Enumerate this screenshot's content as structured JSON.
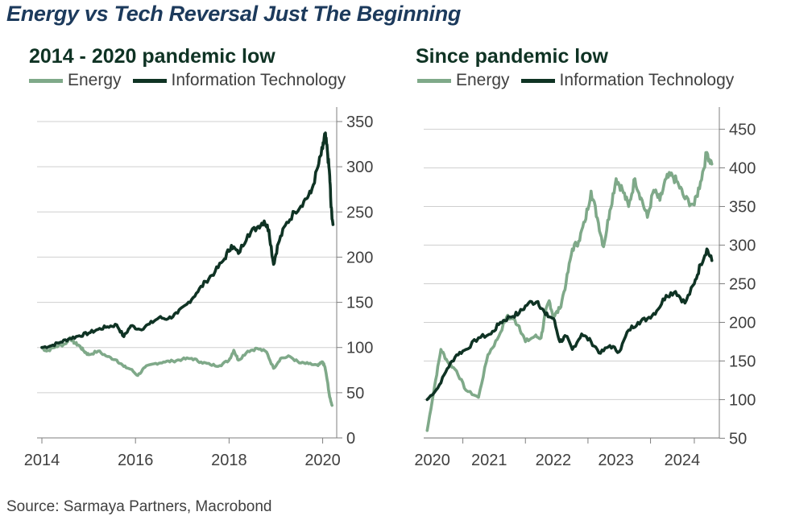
{
  "title": "Energy vs Tech Reversal Just The Beginning",
  "source": "Source: Sarmaya Partners, Macrobond",
  "colors": {
    "energy": "#7fa989",
    "tech": "#0f3324",
    "grid": "#cfcfcf",
    "axis": "#7f7f7f"
  },
  "chart_data": [
    {
      "type": "line",
      "title": "2014 - 2020 pandemic low",
      "x_ticks": [
        "2014",
        "2016",
        "2018",
        "2020"
      ],
      "x_tick_values": [
        2014,
        2016,
        2018,
        2020
      ],
      "xlim": [
        2014,
        2020.3
      ],
      "ylim": [
        0,
        350
      ],
      "y_ticks": [
        "350",
        "300",
        "250",
        "200",
        "150",
        "100",
        "50",
        "0"
      ],
      "y_tick_values": [
        350,
        300,
        250,
        200,
        150,
        100,
        50,
        0
      ],
      "legend": "top-left",
      "grid": true,
      "series": [
        {
          "name": "Energy",
          "color": "#7fa989",
          "x": [
            2014.0,
            2014.1,
            2014.3,
            2014.5,
            2014.6,
            2014.7,
            2014.8,
            2014.9,
            2015.0,
            2015.2,
            2015.4,
            2015.6,
            2015.75,
            2015.9,
            2016.05,
            2016.2,
            2016.4,
            2016.6,
            2016.8,
            2017.0,
            2017.2,
            2017.4,
            2017.6,
            2017.8,
            2018.0,
            2018.1,
            2018.2,
            2018.4,
            2018.6,
            2018.8,
            2018.95,
            2019.1,
            2019.3,
            2019.5,
            2019.7,
            2019.9,
            2020.0,
            2020.05,
            2020.1,
            2020.15,
            2020.2
          ],
          "y": [
            100,
            96,
            101,
            104,
            111,
            105,
            102,
            96,
            92,
            96,
            90,
            86,
            79,
            76,
            69,
            78,
            82,
            84,
            85,
            87,
            88,
            84,
            81,
            80,
            86,
            97,
            86,
            96,
            99,
            95,
            77,
            88,
            90,
            83,
            82,
            80,
            84,
            78,
            63,
            45,
            36
          ]
        },
        {
          "name": "Information Technology",
          "color": "#0f3324",
          "x": [
            2014.0,
            2014.2,
            2014.4,
            2014.6,
            2014.8,
            2015.0,
            2015.2,
            2015.4,
            2015.6,
            2015.75,
            2015.9,
            2016.1,
            2016.3,
            2016.5,
            2016.7,
            2016.9,
            2017.1,
            2017.3,
            2017.5,
            2017.7,
            2017.9,
            2018.05,
            2018.2,
            2018.4,
            2018.6,
            2018.75,
            2018.85,
            2018.95,
            2019.05,
            2019.2,
            2019.4,
            2019.6,
            2019.75,
            2019.9,
            2020.0,
            2020.05,
            2020.1,
            2020.15,
            2020.18,
            2020.22
          ],
          "y": [
            100,
            102,
            106,
            110,
            113,
            116,
            120,
            123,
            125,
            112,
            124,
            120,
            126,
            133,
            132,
            138,
            148,
            160,
            173,
            184,
            198,
            213,
            204,
            225,
            233,
            240,
            230,
            192,
            215,
            235,
            250,
            262,
            271,
            300,
            320,
            336,
            318,
            290,
            255,
            236
          ]
        }
      ]
    },
    {
      "type": "line",
      "title": "Since pandemic low",
      "x_ticks": [
        "2020",
        "2021",
        "2022",
        "2023",
        "2024"
      ],
      "x_tick_values": [
        2020.3,
        2021.3,
        2022.3,
        2023.3,
        2024.0
      ],
      "xlim": [
        2019.7,
        2024.4
      ],
      "ylim": [
        40,
        460
      ],
      "y_ticks": [
        "450",
        "400",
        "350",
        "300",
        "250",
        "200",
        "150",
        "100",
        "50"
      ],
      "y_tick_values": [
        450,
        400,
        350,
        300,
        250,
        200,
        150,
        100,
        50
      ],
      "legend": "top-left",
      "grid": true,
      "series": [
        {
          "name": "Energy",
          "color": "#7fa989",
          "x": [
            2019.73,
            2019.85,
            2019.95,
            2020.05,
            2020.2,
            2020.35,
            2020.55,
            2020.7,
            2020.85,
            2021.0,
            2021.1,
            2021.2,
            2021.3,
            2021.45,
            2021.55,
            2021.62,
            2021.68,
            2021.75,
            2021.85,
            2021.95,
            2022.05,
            2022.15,
            2022.25,
            2022.35,
            2022.45,
            2022.55,
            2022.65,
            2022.75,
            2022.85,
            2022.95,
            2023.05,
            2023.15,
            2023.25,
            2023.35,
            2023.45,
            2023.55,
            2023.65,
            2023.75,
            2023.85,
            2024.0,
            2024.1,
            2024.2,
            2024.28
          ],
          "y": [
            60,
            118,
            165,
            150,
            137,
            112,
            103,
            158,
            178,
            207,
            205,
            195,
            175,
            182,
            180,
            212,
            228,
            207,
            218,
            251,
            295,
            305,
            330,
            370,
            335,
            298,
            345,
            386,
            372,
            350,
            386,
            361,
            336,
            371,
            358,
            386,
            390,
            378,
            360,
            352,
            382,
            420,
            405
          ]
        },
        {
          "name": "Information Technology",
          "color": "#0f3324",
          "x": [
            2019.73,
            2019.9,
            2020.05,
            2020.2,
            2020.35,
            2020.55,
            2020.75,
            2020.9,
            2021.05,
            2021.2,
            2021.35,
            2021.5,
            2021.62,
            2021.75,
            2021.85,
            2021.95,
            2022.05,
            2022.2,
            2022.35,
            2022.5,
            2022.65,
            2022.8,
            2022.95,
            2023.1,
            2023.25,
            2023.4,
            2023.55,
            2023.7,
            2023.85,
            2024.0,
            2024.1,
            2024.2,
            2024.28
          ],
          "y": [
            100,
            115,
            140,
            158,
            165,
            180,
            185,
            200,
            207,
            212,
            225,
            227,
            210,
            205,
            175,
            182,
            165,
            185,
            175,
            160,
            170,
            162,
            190,
            200,
            205,
            215,
            235,
            240,
            225,
            250,
            275,
            295,
            280
          ]
        }
      ]
    }
  ]
}
